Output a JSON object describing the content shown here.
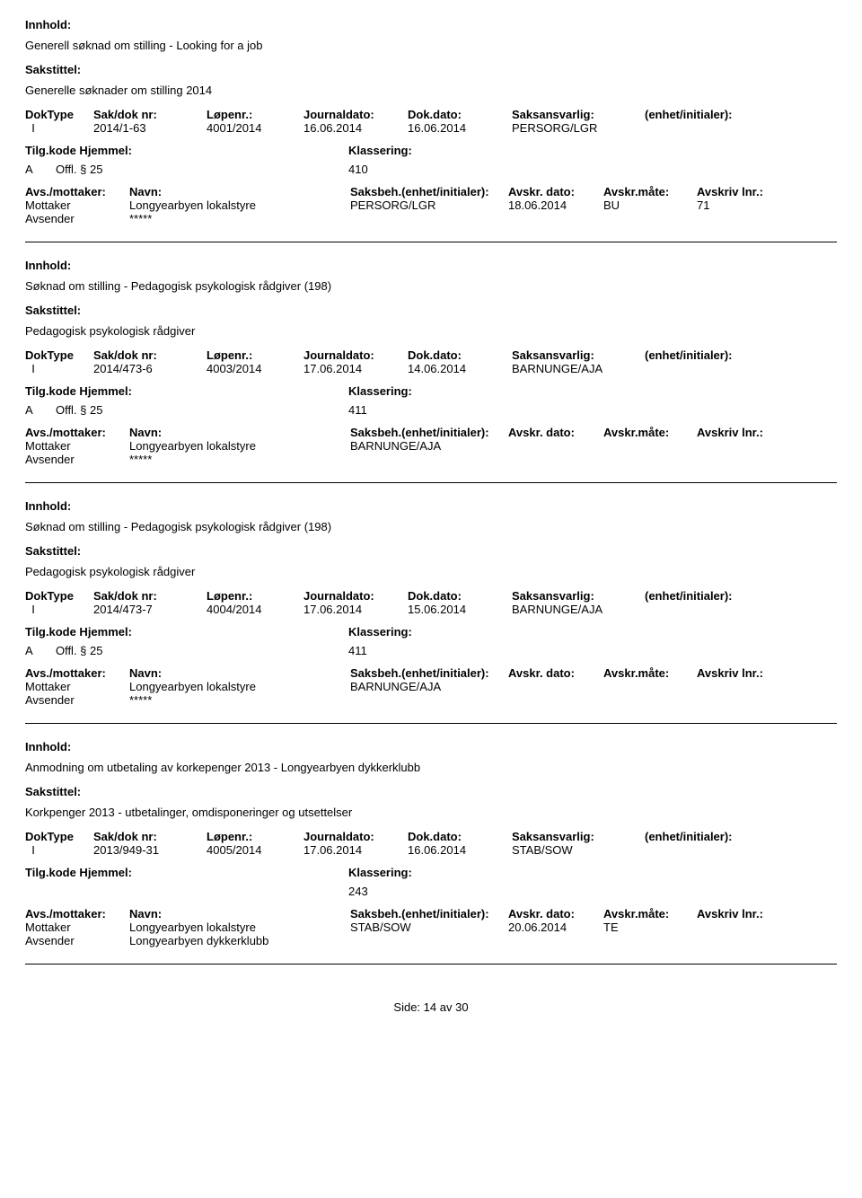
{
  "labels": {
    "innhold": "Innhold:",
    "sakstittel": "Sakstittel:",
    "doktype": "DokType",
    "saknr": "Sak/dok nr:",
    "lopenr": "Løpenr.:",
    "journaldato": "Journaldato:",
    "dokdate": "Dok.dato:",
    "saksansvarlig": "Saksansvarlig:",
    "enhet_init": "(enhet/initialer):",
    "tilgkode": "Tilg.kode",
    "hjemmel": "Hjemmel:",
    "klassering": "Klassering:",
    "avs_mottaker": "Avs./mottaker:",
    "navn": "Navn:",
    "saksbeh_enhet": "Saksbeh.(enhet/initialer):",
    "avskr_dato": "Avskr. dato:",
    "avskr_mate": "Avskr.måte:",
    "avskriv_lnr": "Avskriv lnr.:",
    "mottaker": "Mottaker",
    "avsender": "Avsender"
  },
  "footer": {
    "side_label": "Side:",
    "page": "14",
    "av": "av",
    "total": "30"
  },
  "entries": [
    {
      "innhold": "Generell søknad om stilling - Looking for a job",
      "sakstittel": "Generelle søknader om stilling 2014",
      "doktype": "I",
      "saknr": "2014/1-63",
      "lopenr": "4001/2014",
      "journaldato": "16.06.2014",
      "dokdate": "16.06.2014",
      "saksansvarlig": "PERSORG/LGR",
      "enhet_init": "",
      "tilgkode": "A",
      "hjemmel": "Offl. § 25",
      "klassering": "410",
      "rows": [
        {
          "role": "Mottaker",
          "navn": "Longyearbyen lokalstyre",
          "saksbeh": "PERSORG/LGR",
          "avskr_dato": "18.06.2014",
          "avskr_mate": "BU",
          "avskr_lnr": "71"
        },
        {
          "role": "Avsender",
          "navn": "*****",
          "saksbeh": "",
          "avskr_dato": "",
          "avskr_mate": "",
          "avskr_lnr": ""
        }
      ]
    },
    {
      "innhold": "Søknad om stilling - Pedagogisk psykologisk rådgiver (198)",
      "sakstittel": "Pedagogisk psykologisk rådgiver",
      "doktype": "I",
      "saknr": "2014/473-6",
      "lopenr": "4003/2014",
      "journaldato": "17.06.2014",
      "dokdate": "14.06.2014",
      "saksansvarlig": "BARNUNGE/AJA",
      "enhet_init": "",
      "tilgkode": "A",
      "hjemmel": "Offl. § 25",
      "klassering": "411",
      "rows": [
        {
          "role": "Mottaker",
          "navn": "Longyearbyen lokalstyre",
          "saksbeh": "BARNUNGE/AJA",
          "avskr_dato": "",
          "avskr_mate": "",
          "avskr_lnr": ""
        },
        {
          "role": "Avsender",
          "navn": "*****",
          "saksbeh": "",
          "avskr_dato": "",
          "avskr_mate": "",
          "avskr_lnr": ""
        }
      ]
    },
    {
      "innhold": "Søknad om stilling - Pedagogisk psykologisk rådgiver (198)",
      "sakstittel": "Pedagogisk psykologisk rådgiver",
      "doktype": "I",
      "saknr": "2014/473-7",
      "lopenr": "4004/2014",
      "journaldato": "17.06.2014",
      "dokdate": "15.06.2014",
      "saksansvarlig": "BARNUNGE/AJA",
      "enhet_init": "",
      "tilgkode": "A",
      "hjemmel": "Offl. § 25",
      "klassering": "411",
      "rows": [
        {
          "role": "Mottaker",
          "navn": "Longyearbyen lokalstyre",
          "saksbeh": "BARNUNGE/AJA",
          "avskr_dato": "",
          "avskr_mate": "",
          "avskr_lnr": ""
        },
        {
          "role": "Avsender",
          "navn": "*****",
          "saksbeh": "",
          "avskr_dato": "",
          "avskr_mate": "",
          "avskr_lnr": ""
        }
      ]
    },
    {
      "innhold": "Anmodning om utbetaling av korkepenger 2013 - Longyearbyen dykkerklubb",
      "sakstittel": "Korkpenger 2013 - utbetalinger, omdisponeringer og utsettelser",
      "doktype": "I",
      "saknr": "2013/949-31",
      "lopenr": "4005/2014",
      "journaldato": "17.06.2014",
      "dokdate": "16.06.2014",
      "saksansvarlig": "STAB/SOW",
      "enhet_init": "",
      "tilgkode": "",
      "hjemmel": "",
      "klassering": "243",
      "rows": [
        {
          "role": "Mottaker",
          "navn": "Longyearbyen lokalstyre",
          "saksbeh": "STAB/SOW",
          "avskr_dato": "20.06.2014",
          "avskr_mate": "TE",
          "avskr_lnr": ""
        },
        {
          "role": "Avsender",
          "navn": "Longyearbyen dykkerklubb",
          "saksbeh": "",
          "avskr_dato": "",
          "avskr_mate": "",
          "avskr_lnr": ""
        }
      ]
    }
  ]
}
